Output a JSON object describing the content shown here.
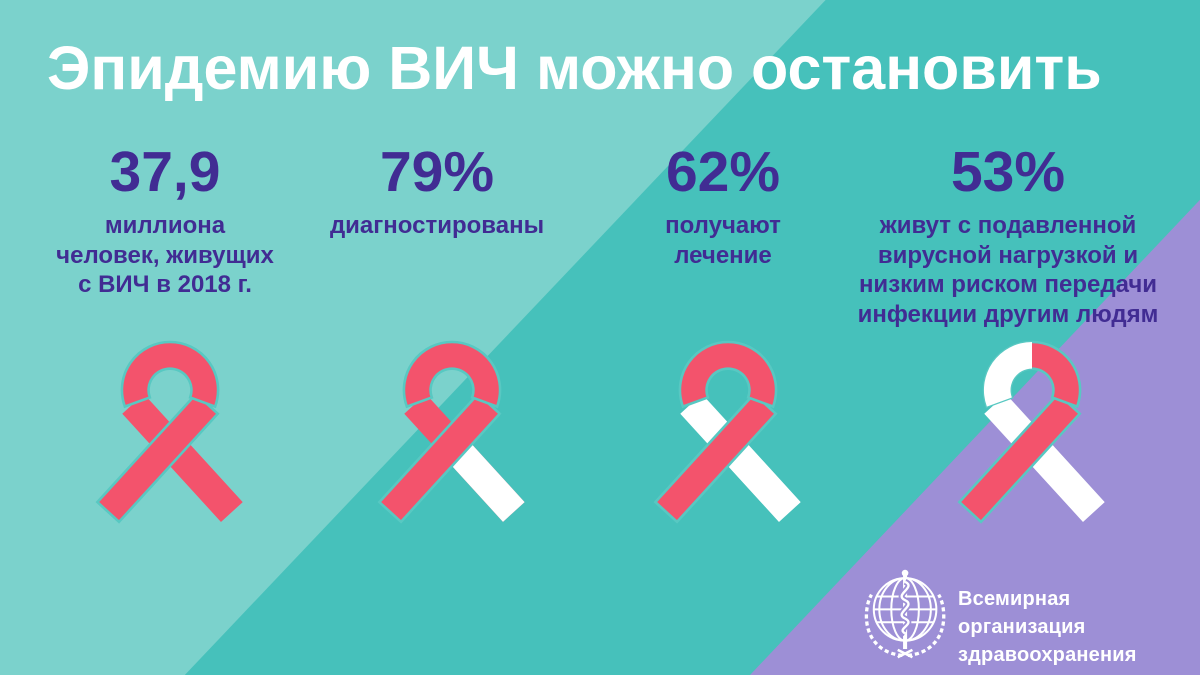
{
  "title": "Эпидемию ВИЧ можно остановить",
  "colors": {
    "teal_dark": "#46C1BB",
    "teal_light": "#7BD2CC",
    "purple": "#9D8FD6",
    "ribbon_red": "#F3536C",
    "ribbon_white": "#FFFFFF",
    "stat_text": "#412C93",
    "title_text": "#FFFFFF",
    "who_text": "#FFFFFF",
    "gap_stroke": "#58C8C2"
  },
  "stats": [
    {
      "value": "37,9",
      "lines": [
        "миллиона",
        "человек, живущих",
        "с ВИЧ в 2018 г."
      ]
    },
    {
      "value": "79%",
      "lines": [
        "диагностированы"
      ]
    },
    {
      "value": "62%",
      "lines": [
        "получают",
        "лечение"
      ]
    },
    {
      "value": "53%",
      "lines": [
        "живут с подавленной",
        "вирусной нагрузкой и",
        "низким риском передачи",
        "инфекции другим людям"
      ]
    }
  ],
  "ribbons": [
    {
      "arc_left": "red",
      "arc_right": "red",
      "band_b_upper": "red",
      "band_b_lower": "red",
      "band_a": "red"
    },
    {
      "arc_left": "red",
      "arc_right": "red",
      "band_b_upper": "red",
      "band_b_lower": "white",
      "band_a": "red"
    },
    {
      "arc_left": "red",
      "arc_right": "red",
      "band_b_upper": "white",
      "band_b_lower": "white",
      "band_a": "red"
    },
    {
      "arc_left": "white",
      "arc_right": "red",
      "band_b_upper": "white",
      "band_b_lower": "white",
      "band_a": "red"
    }
  ],
  "who": {
    "org_line1": "Всемирная организация",
    "org_line2": "здравоохранения"
  },
  "chart_data": {
    "type": "pictogram",
    "title": "Эпидемию ВИЧ можно остановить",
    "categories": [
      "миллиона человек, живущих с ВИЧ в 2018 г.",
      "диагностированы",
      "получают лечение",
      "живут с подавленной вирусной нагрузкой и низким риском передачи инфекции другим людям"
    ],
    "values": [
      37.9,
      79,
      62,
      53
    ],
    "units": [
      "млн",
      "%",
      "%",
      "%"
    ],
    "ribbon_fill_percent": [
      100,
      79,
      62,
      53
    ],
    "legend_position": "none",
    "grid": false
  }
}
